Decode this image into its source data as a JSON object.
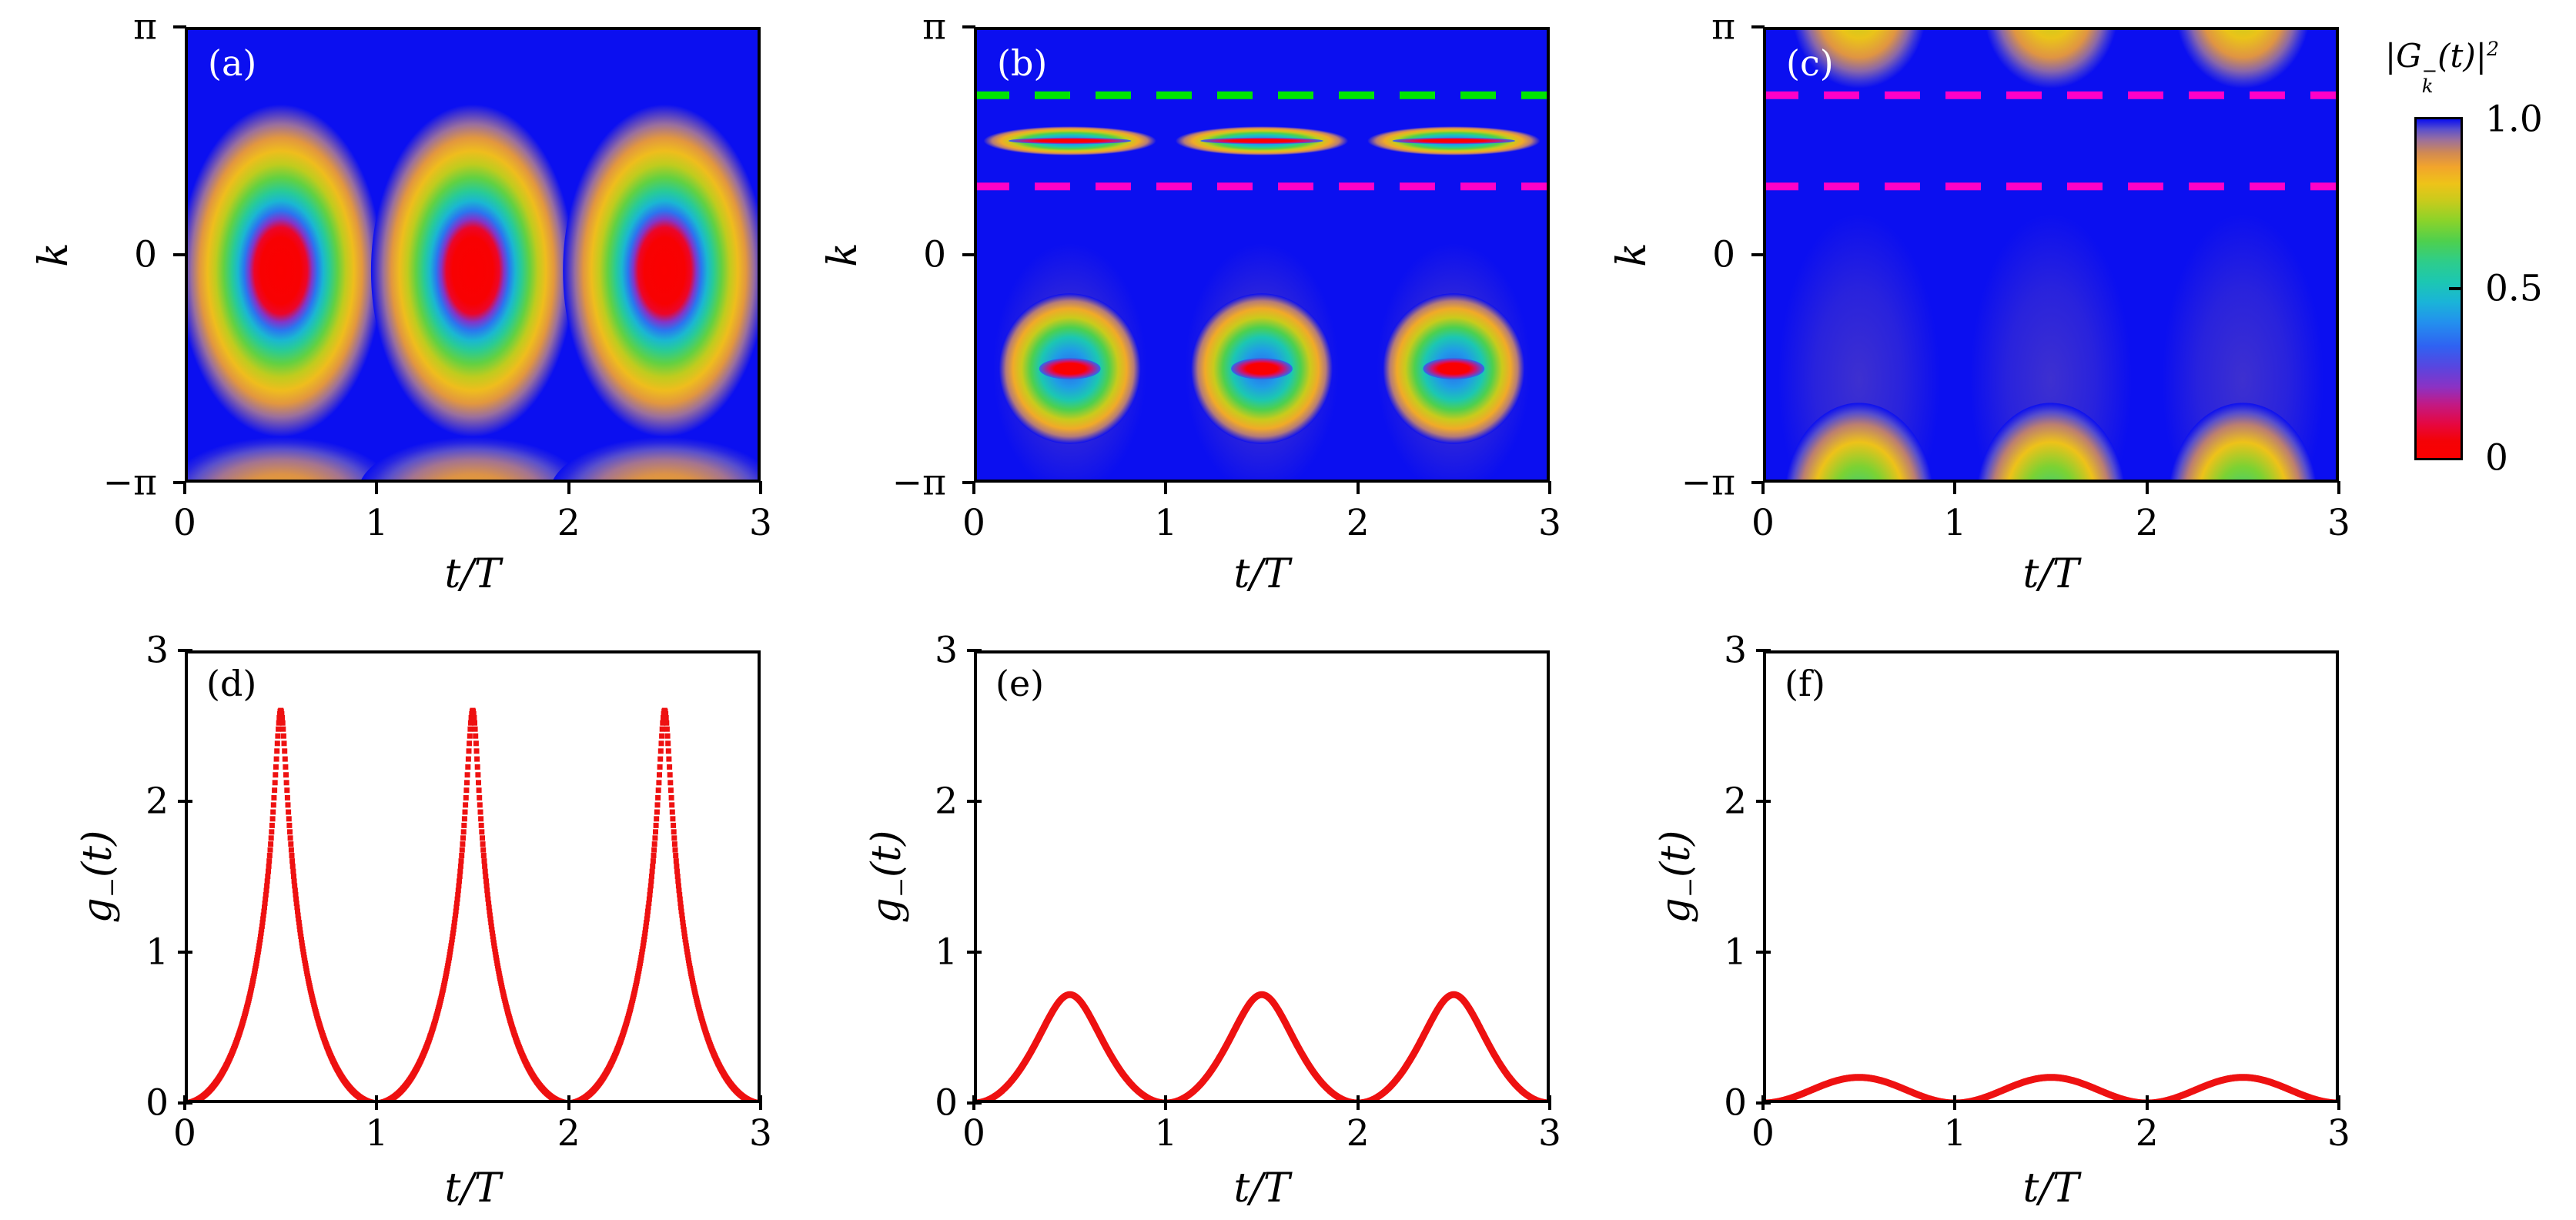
{
  "colors": {
    "heat_background": "#0b0ff0",
    "curve_red": "#ee1111",
    "dash_green": "#00e400",
    "dash_magenta": "#ff00c8",
    "axis_black": "#000000",
    "heat_panel_label": "#ffffff",
    "colormap_stops": [
      [
        0.0,
        "#fb0000"
      ],
      [
        0.05,
        "#f40206"
      ],
      [
        0.1,
        "#e60740"
      ],
      [
        0.16,
        "#c11a86"
      ],
      [
        0.21,
        "#8b32c4"
      ],
      [
        0.27,
        "#5746e0"
      ],
      [
        0.33,
        "#2f62f2"
      ],
      [
        0.4,
        "#2390ee"
      ],
      [
        0.46,
        "#1ab4d8"
      ],
      [
        0.52,
        "#1cc7b2"
      ],
      [
        0.58,
        "#2ecd8a"
      ],
      [
        0.64,
        "#4ed04e"
      ],
      [
        0.7,
        "#8ad32a"
      ],
      [
        0.76,
        "#c9cb1c"
      ],
      [
        0.81,
        "#eec319"
      ],
      [
        0.86,
        "#f2a42c"
      ],
      [
        0.9,
        "#d28a52"
      ],
      [
        0.94,
        "#9a6f9e"
      ],
      [
        0.97,
        "#5a50cc"
      ],
      [
        1.0,
        "#0b0ff0"
      ]
    ]
  },
  "colorbar": {
    "label_parts": {
      "open": "|G",
      "sup": "−",
      "sub": "k",
      "close": "(t)|",
      "power": "2"
    },
    "range": [
      0,
      1
    ],
    "ticks": [
      {
        "value": 1.0,
        "label": "1.0"
      },
      {
        "value": 0.5,
        "label": "0.5"
      },
      {
        "value": 0.0,
        "label": "0"
      }
    ]
  },
  "chart_data": [
    {
      "id": "a",
      "panel_label": "(a)",
      "type": "heatmap",
      "xlabel": "t/T",
      "x_ticks": [
        "0",
        "1",
        "2",
        "3"
      ],
      "x_range": [
        0,
        3
      ],
      "ylabel": "k",
      "y_ticks": [
        "π",
        "0",
        "−π"
      ],
      "y_range_pi": [
        -1,
        1
      ],
      "value_label": "|G−k(t)|²",
      "value_range": [
        0,
        1
      ],
      "background_value": 1.0,
      "blobs": [
        {
          "style": "dome",
          "centers_t": [
            0.5,
            1.5,
            2.5
          ],
          "center_k_pi": -1.05,
          "center_value": 0.85,
          "rx_t": 0.6,
          "ry_k_pi": 0.25
        },
        {
          "style": "ring",
          "profile": "wide",
          "centers_t": [
            0.5,
            1.5,
            2.5
          ],
          "center_k_pi": -0.07,
          "core_value": 0.0,
          "rx_t": 0.53,
          "ry_k_pi": 0.73
        }
      ],
      "dashed_lines": []
    },
    {
      "id": "b",
      "panel_label": "(b)",
      "type": "heatmap",
      "xlabel": "t/T",
      "x_ticks": [
        "0",
        "1",
        "2",
        "3"
      ],
      "x_range": [
        0,
        3
      ],
      "ylabel": "k",
      "y_ticks": [
        "π",
        "0",
        "−π"
      ],
      "y_range_pi": [
        -1,
        1
      ],
      "value_label": "|G−k(t)|²",
      "value_range": [
        0,
        1
      ],
      "background_value": 1.0,
      "blobs": [
        {
          "style": "ring",
          "profile": "ring",
          "centers_t": [
            0.5,
            1.5,
            2.5
          ],
          "center_k_pi": 0.5,
          "rx_t": 0.45,
          "ry_k_pi": 0.064,
          "core": {
            "value": 0.0,
            "rx_t": 0.32,
            "ry_k_pi": 0.014
          }
        },
        {
          "style": "ring",
          "profile": "ring",
          "centers_t": [
            0.5,
            1.5,
            2.5
          ],
          "center_k_pi": -0.5,
          "rx_t": 0.37,
          "ry_k_pi": 0.33,
          "core": {
            "value": 0.0,
            "rx_t": 0.16,
            "ry_k_pi": 0.047
          },
          "haze": {
            "center_k_pi": -0.5,
            "rx_t": 0.4,
            "ry_k_pi": 0.55,
            "alpha": 0.35
          }
        }
      ],
      "dashed_lines": [
        {
          "k_pi": 0.7,
          "color": "#00e400",
          "pattern": "dashed"
        },
        {
          "k_pi": 0.3,
          "color": "#ff00c8",
          "pattern": "dashed"
        }
      ]
    },
    {
      "id": "c",
      "panel_label": "(c)",
      "type": "heatmap",
      "xlabel": "t/T",
      "x_ticks": [
        "0",
        "1",
        "2",
        "3"
      ],
      "x_range": [
        0,
        3
      ],
      "ylabel": "k",
      "y_ticks": [
        "π",
        "0",
        "−π"
      ],
      "y_range_pi": [
        -1,
        1
      ],
      "value_label": "|G−k(t)|²",
      "value_range": [
        0,
        1
      ],
      "background_value": 1.0,
      "blobs": [
        {
          "style": "dome",
          "centers_t": [
            0.5,
            1.5,
            2.5
          ],
          "center_k_pi": 1.07,
          "center_value": 0.74,
          "rx_t": 0.35,
          "ry_k_pi": 0.34
        },
        {
          "style": "dome",
          "centers_t": [
            0.5,
            1.5,
            2.5
          ],
          "center_k_pi": -1.08,
          "center_value": 0.58,
          "rx_t": 0.39,
          "ry_k_pi": 0.43,
          "haze": {
            "center_k_pi": -0.55,
            "rx_t": 0.42,
            "ry_k_pi": 0.73,
            "alpha": 0.32
          }
        }
      ],
      "dashed_lines": [
        {
          "k_pi": 0.7,
          "color": "#ff00c8",
          "pattern": "dashed"
        },
        {
          "k_pi": 0.3,
          "color": "#ff00c8",
          "pattern": "dashed"
        }
      ]
    },
    {
      "id": "d",
      "panel_label": "(d)",
      "type": "scatter",
      "xlabel": "t/T",
      "x_ticks": [
        "0",
        "1",
        "2",
        "3"
      ],
      "x_range": [
        0,
        3
      ],
      "ylabel": "g−(t)",
      "ylabel_parts": {
        "base": "g",
        "sub": "−",
        "arg": "(t)"
      },
      "y_ticks": [
        "3",
        "2",
        "1",
        "0"
      ],
      "ylim": [
        0,
        3
      ],
      "grid": false,
      "legend": "none",
      "series": [
        {
          "name": "g−(t)",
          "color": "#ee1111",
          "marker": "square-dot",
          "model": {
            "kind": "log_cusp",
            "a": 0.5,
            "eps": 0.0055,
            "period": 1
          },
          "peak_t": [
            0.5,
            1.5,
            2.5
          ],
          "peak_value": 2.6,
          "zeros_t": [
            0,
            1,
            2,
            3
          ],
          "period": 1,
          "t_step": 0.05,
          "period_values": [
            0,
            0.003,
            0.05,
            0.115,
            0.21,
            0.344,
            0.526,
            0.779,
            1.149,
            1.756,
            2.601,
            1.756,
            1.149,
            0.779,
            0.526,
            0.344,
            0.21,
            0.115,
            0.05,
            0.003,
            0
          ]
        }
      ]
    },
    {
      "id": "e",
      "panel_label": "(e)",
      "type": "line",
      "xlabel": "t/T",
      "x_ticks": [
        "0",
        "1",
        "2",
        "3"
      ],
      "x_range": [
        0,
        3
      ],
      "ylabel": "g−(t)",
      "ylabel_parts": {
        "base": "g",
        "sub": "−",
        "arg": "(t)"
      },
      "y_ticks": [
        "3",
        "2",
        "1",
        "0"
      ],
      "ylim": [
        0,
        3
      ],
      "grid": false,
      "legend": "none",
      "series": [
        {
          "name": "g−(t)",
          "color": "#ee1111",
          "marker": "none",
          "model": {
            "kind": "log_cusp",
            "a": 0.5,
            "eps": 0.2376,
            "period": 1
          },
          "peak_t": [
            0.5,
            1.5,
            2.5
          ],
          "peak_value": 0.72,
          "zeros_t": [
            0,
            1,
            2,
            3
          ],
          "period": 1,
          "t_step": 0.05,
          "period_values": [
            0,
            0.002,
            0.038,
            0.086,
            0.153,
            0.24,
            0.346,
            0.465,
            0.586,
            0.682,
            0.72,
            0.682,
            0.586,
            0.465,
            0.346,
            0.24,
            0.153,
            0.086,
            0.038,
            0.002,
            0
          ]
        }
      ]
    },
    {
      "id": "f",
      "panel_label": "(f)",
      "type": "line",
      "xlabel": "t/T",
      "x_ticks": [
        "0",
        "1",
        "2",
        "3"
      ],
      "x_range": [
        0,
        3
      ],
      "ylabel": "g−(t)",
      "ylabel_parts": {
        "base": "g",
        "sub": "−",
        "arg": "(t)"
      },
      "y_ticks": [
        "3",
        "2",
        "1",
        "0"
      ],
      "ylim": [
        0,
        3
      ],
      "grid": false,
      "legend": "none",
      "series": [
        {
          "name": "g−(t)",
          "color": "#ee1111",
          "marker": "none",
          "model": {
            "kind": "sin_squared",
            "amplitude": 0.17,
            "period": 1
          },
          "peak_t": [
            0.5,
            1.5,
            2.5
          ],
          "peak_value": 0.17,
          "zeros_t": [
            0,
            1,
            2,
            3
          ],
          "period": 1,
          "t_step": 0.05,
          "period_values": [
            0,
            0.004,
            0.016,
            0.035,
            0.059,
            0.085,
            0.111,
            0.135,
            0.154,
            0.166,
            0.17,
            0.166,
            0.154,
            0.135,
            0.111,
            0.085,
            0.059,
            0.035,
            0.016,
            0.004,
            0
          ]
        }
      ]
    }
  ]
}
